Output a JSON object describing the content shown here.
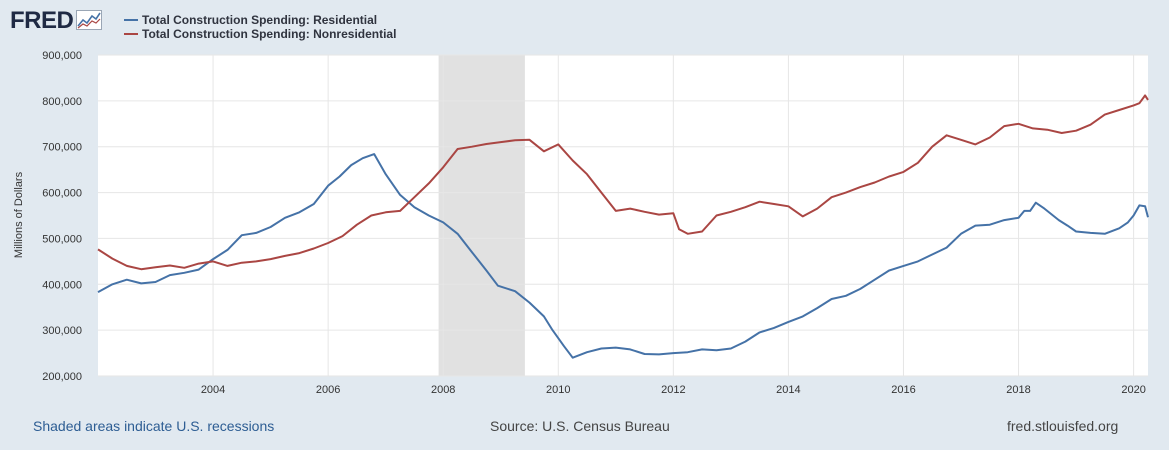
{
  "brand": {
    "logo_text": "FRED"
  },
  "footer": {
    "recession_note": "Shaded areas indicate U.S. recessions",
    "source": "Source: U.S. Census Bureau",
    "site": "fred.stlouisfed.org"
  },
  "colors": {
    "residential": "#4572a7",
    "nonresidential": "#aa4643",
    "recession": "#e1e1e1",
    "grid": "#e6e6e6"
  },
  "chart_data": {
    "type": "line",
    "title": "",
    "xlabel": "",
    "ylabel": "Millions of Dollars",
    "xlim": [
      2002.0,
      2020.25
    ],
    "ylim": [
      200000,
      900000
    ],
    "y_ticks": [
      200000,
      300000,
      400000,
      500000,
      600000,
      700000,
      800000,
      900000
    ],
    "y_tick_labels": [
      "200,000",
      "300,000",
      "400,000",
      "500,000",
      "600,000",
      "700,000",
      "800,000",
      "900,000"
    ],
    "x_ticks": [
      2004,
      2006,
      2008,
      2010,
      2012,
      2014,
      2016,
      2018,
      2020
    ],
    "x_tick_labels": [
      "2004",
      "2006",
      "2008",
      "2010",
      "2012",
      "2014",
      "2016",
      "2018",
      "2020"
    ],
    "grid": true,
    "legend_position": "top-left",
    "recessions": [
      {
        "start": 2007.92,
        "end": 2009.42
      }
    ],
    "series": [
      {
        "name": "Total Construction Spending: Residential",
        "color": "#4572a7",
        "points": [
          [
            2002.0,
            383000
          ],
          [
            2002.25,
            400000
          ],
          [
            2002.5,
            410000
          ],
          [
            2002.75,
            402000
          ],
          [
            2003.0,
            405000
          ],
          [
            2003.25,
            420000
          ],
          [
            2003.5,
            425000
          ],
          [
            2003.75,
            432000
          ],
          [
            2004.0,
            455000
          ],
          [
            2004.25,
            475000
          ],
          [
            2004.5,
            507000
          ],
          [
            2004.75,
            512000
          ],
          [
            2005.0,
            525000
          ],
          [
            2005.25,
            545000
          ],
          [
            2005.5,
            557000
          ],
          [
            2005.75,
            575000
          ],
          [
            2006.0,
            615000
          ],
          [
            2006.2,
            635000
          ],
          [
            2006.4,
            660000
          ],
          [
            2006.6,
            675000
          ],
          [
            2006.8,
            684000
          ],
          [
            2007.0,
            640000
          ],
          [
            2007.25,
            595000
          ],
          [
            2007.5,
            568000
          ],
          [
            2007.75,
            550000
          ],
          [
            2008.0,
            535000
          ],
          [
            2008.25,
            510000
          ],
          [
            2008.5,
            470000
          ],
          [
            2008.75,
            430000
          ],
          [
            2008.95,
            397000
          ],
          [
            2009.25,
            385000
          ],
          [
            2009.5,
            360000
          ],
          [
            2009.75,
            330000
          ],
          [
            2009.9,
            300000
          ],
          [
            2010.1,
            265000
          ],
          [
            2010.25,
            240000
          ],
          [
            2010.5,
            252000
          ],
          [
            2010.75,
            260000
          ],
          [
            2011.0,
            262000
          ],
          [
            2011.25,
            258000
          ],
          [
            2011.5,
            248000
          ],
          [
            2011.75,
            247000
          ],
          [
            2012.0,
            250000
          ],
          [
            2012.25,
            252000
          ],
          [
            2012.5,
            258000
          ],
          [
            2012.75,
            256000
          ],
          [
            2013.0,
            260000
          ],
          [
            2013.25,
            275000
          ],
          [
            2013.5,
            295000
          ],
          [
            2013.75,
            305000
          ],
          [
            2014.0,
            318000
          ],
          [
            2014.25,
            330000
          ],
          [
            2014.5,
            348000
          ],
          [
            2014.75,
            368000
          ],
          [
            2015.0,
            375000
          ],
          [
            2015.25,
            390000
          ],
          [
            2015.5,
            410000
          ],
          [
            2015.75,
            430000
          ],
          [
            2016.0,
            440000
          ],
          [
            2016.25,
            450000
          ],
          [
            2016.5,
            465000
          ],
          [
            2016.75,
            480000
          ],
          [
            2017.0,
            510000
          ],
          [
            2017.25,
            528000
          ],
          [
            2017.5,
            530000
          ],
          [
            2017.75,
            540000
          ],
          [
            2018.0,
            545000
          ],
          [
            2018.1,
            560000
          ],
          [
            2018.2,
            560000
          ],
          [
            2018.3,
            578000
          ],
          [
            2018.45,
            565000
          ],
          [
            2018.7,
            540000
          ],
          [
            2018.85,
            528000
          ],
          [
            2019.0,
            515000
          ],
          [
            2019.25,
            512000
          ],
          [
            2019.5,
            510000
          ],
          [
            2019.75,
            522000
          ],
          [
            2019.9,
            535000
          ],
          [
            2020.0,
            550000
          ],
          [
            2020.1,
            572000
          ],
          [
            2020.2,
            570000
          ],
          [
            2020.25,
            546000
          ]
        ]
      },
      {
        "name": "Total Construction Spending: Nonresidential",
        "color": "#aa4643",
        "points": [
          [
            2002.0,
            476000
          ],
          [
            2002.25,
            456000
          ],
          [
            2002.5,
            440000
          ],
          [
            2002.75,
            433000
          ],
          [
            2003.0,
            437000
          ],
          [
            2003.25,
            441000
          ],
          [
            2003.5,
            436000
          ],
          [
            2003.75,
            445000
          ],
          [
            2004.0,
            450000
          ],
          [
            2004.25,
            440000
          ],
          [
            2004.5,
            447000
          ],
          [
            2004.75,
            450000
          ],
          [
            2005.0,
            455000
          ],
          [
            2005.25,
            462000
          ],
          [
            2005.5,
            468000
          ],
          [
            2005.75,
            478000
          ],
          [
            2006.0,
            490000
          ],
          [
            2006.25,
            505000
          ],
          [
            2006.5,
            530000
          ],
          [
            2006.75,
            550000
          ],
          [
            2007.0,
            557000
          ],
          [
            2007.25,
            560000
          ],
          [
            2007.5,
            590000
          ],
          [
            2007.75,
            620000
          ],
          [
            2008.0,
            655000
          ],
          [
            2008.25,
            695000
          ],
          [
            2008.5,
            700000
          ],
          [
            2008.75,
            706000
          ],
          [
            2009.0,
            710000
          ],
          [
            2009.25,
            714000
          ],
          [
            2009.5,
            715000
          ],
          [
            2009.75,
            690000
          ],
          [
            2010.0,
            705000
          ],
          [
            2010.25,
            670000
          ],
          [
            2010.5,
            640000
          ],
          [
            2010.75,
            600000
          ],
          [
            2011.0,
            560000
          ],
          [
            2011.25,
            565000
          ],
          [
            2011.5,
            558000
          ],
          [
            2011.75,
            552000
          ],
          [
            2012.0,
            555000
          ],
          [
            2012.1,
            520000
          ],
          [
            2012.25,
            510000
          ],
          [
            2012.5,
            515000
          ],
          [
            2012.75,
            550000
          ],
          [
            2013.0,
            558000
          ],
          [
            2013.25,
            568000
          ],
          [
            2013.5,
            580000
          ],
          [
            2013.75,
            575000
          ],
          [
            2014.0,
            570000
          ],
          [
            2014.25,
            548000
          ],
          [
            2014.5,
            565000
          ],
          [
            2014.75,
            590000
          ],
          [
            2015.0,
            600000
          ],
          [
            2015.25,
            612000
          ],
          [
            2015.5,
            622000
          ],
          [
            2015.75,
            635000
          ],
          [
            2016.0,
            645000
          ],
          [
            2016.25,
            665000
          ],
          [
            2016.5,
            700000
          ],
          [
            2016.75,
            725000
          ],
          [
            2017.0,
            715000
          ],
          [
            2017.25,
            705000
          ],
          [
            2017.5,
            720000
          ],
          [
            2017.75,
            745000
          ],
          [
            2018.0,
            750000
          ],
          [
            2018.25,
            740000
          ],
          [
            2018.5,
            737000
          ],
          [
            2018.75,
            730000
          ],
          [
            2019.0,
            735000
          ],
          [
            2019.25,
            748000
          ],
          [
            2019.5,
            770000
          ],
          [
            2019.75,
            780000
          ],
          [
            2020.0,
            790000
          ],
          [
            2020.1,
            795000
          ],
          [
            2020.2,
            812000
          ],
          [
            2020.25,
            802000
          ]
        ]
      }
    ]
  }
}
